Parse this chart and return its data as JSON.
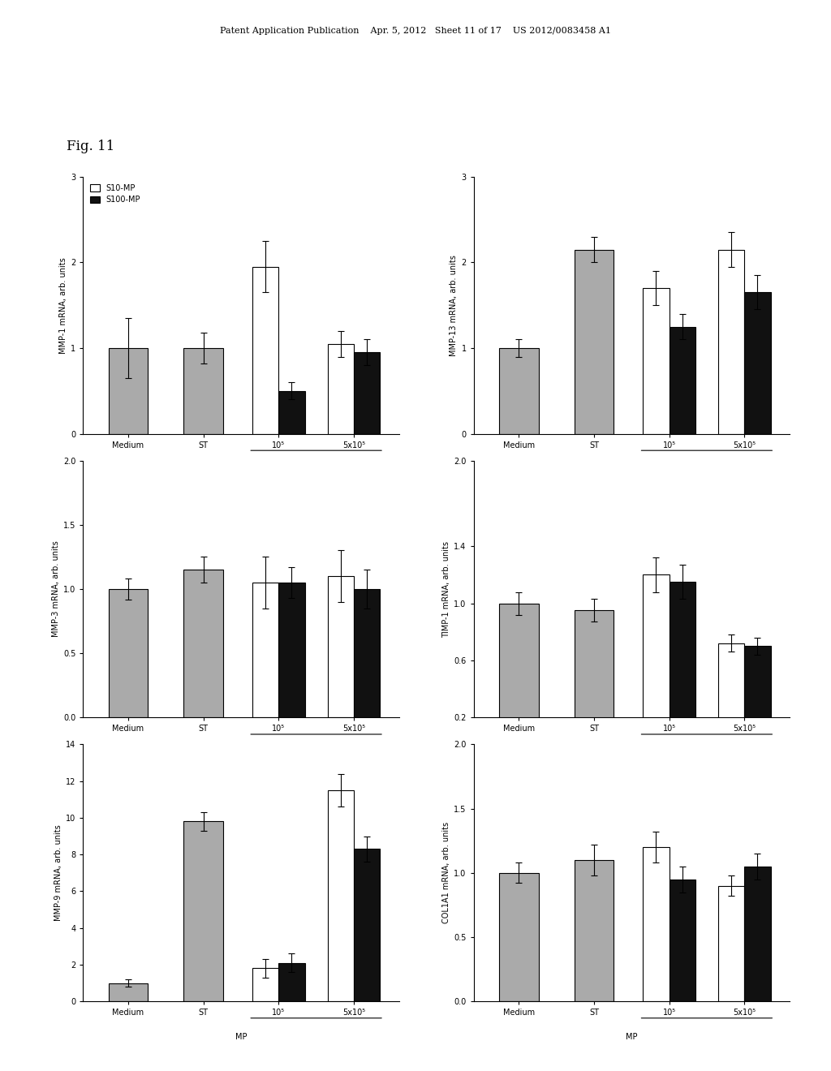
{
  "fig_label": "Fig. 11",
  "header_text": "Patent Application Publication    Apr. 5, 2012   Sheet 11 of 17    US 2012/0083458 A1",
  "legend_labels": [
    "S10-MP",
    "S100-MP"
  ],
  "x_tick_labels": [
    "Medium",
    "ST",
    "10⁵",
    "5x10⁵"
  ],
  "x_label": "MP",
  "subplots": [
    {
      "title": "",
      "ylabel": "MMP-1 mRNA, arb. units",
      "ylim": [
        0,
        3
      ],
      "yticks": [
        0,
        1,
        2,
        3
      ],
      "data": {
        "medium": {
          "s10": 1.0,
          "s100": null,
          "s10_err": 0.35,
          "s100_err": null
        },
        "st": {
          "s10": 1.0,
          "s100": null,
          "s10_err": 0.18,
          "s100_err": null
        },
        "1e5": {
          "s10": 1.95,
          "s100": 0.5,
          "s10_err": 0.3,
          "s100_err": 0.1
        },
        "5e5": {
          "s10": 1.05,
          "s100": 0.95,
          "s10_err": 0.15,
          "s100_err": 0.15
        }
      },
      "show_legend": true
    },
    {
      "title": "",
      "ylabel": "MMP-13 mRNA, arb. units",
      "ylim": [
        0,
        3
      ],
      "yticks": [
        0,
        1,
        2,
        3
      ],
      "data": {
        "medium": {
          "s10": 1.0,
          "s100": null,
          "s10_err": 0.1,
          "s100_err": null
        },
        "st": {
          "s10": 2.15,
          "s100": null,
          "s10_err": 0.15,
          "s100_err": null
        },
        "1e5": {
          "s10": 1.7,
          "s100": 1.25,
          "s10_err": 0.2,
          "s100_err": 0.15
        },
        "5e5": {
          "s10": 2.15,
          "s100": 1.65,
          "s10_err": 0.2,
          "s100_err": 0.2
        }
      },
      "show_legend": false
    },
    {
      "title": "",
      "ylabel": "MMP-3 mRNA, arb. units",
      "ylim": [
        0.0,
        2.0
      ],
      "yticks": [
        0.0,
        0.5,
        1.0,
        1.5,
        2.0
      ],
      "data": {
        "medium": {
          "s10": 1.0,
          "s100": null,
          "s10_err": 0.08,
          "s100_err": null
        },
        "st": {
          "s10": 1.15,
          "s100": null,
          "s10_err": 0.1,
          "s100_err": null
        },
        "1e5": {
          "s10": 1.05,
          "s100": 1.05,
          "s10_err": 0.2,
          "s100_err": 0.12
        },
        "5e5": {
          "s10": 1.1,
          "s100": 1.0,
          "s10_err": 0.2,
          "s100_err": 0.15
        }
      },
      "show_legend": false
    },
    {
      "title": "",
      "ylabel": "TIMP-1 mRNA, arb. units",
      "ylim": [
        0.2,
        2.0
      ],
      "yticks": [
        0.2,
        0.6,
        1.0,
        1.4,
        2.0
      ],
      "data": {
        "medium": {
          "s10": 1.0,
          "s100": null,
          "s10_err": 0.08,
          "s100_err": null
        },
        "st": {
          "s10": 0.95,
          "s100": null,
          "s10_err": 0.08,
          "s100_err": null
        },
        "1e5": {
          "s10": 1.2,
          "s100": 1.15,
          "s10_err": 0.12,
          "s100_err": 0.12
        },
        "5e5": {
          "s10": 0.72,
          "s100": 0.7,
          "s10_err": 0.06,
          "s100_err": 0.06
        }
      },
      "show_legend": false
    },
    {
      "title": "",
      "ylabel": "MMP-9 mRNA, arb. units",
      "ylim": [
        0,
        14
      ],
      "yticks": [
        0,
        2,
        4,
        6,
        8,
        10,
        12,
        14
      ],
      "data": {
        "medium": {
          "s10": 1.0,
          "s100": null,
          "s10_err": 0.2,
          "s100_err": null
        },
        "st": {
          "s10": 9.8,
          "s100": null,
          "s10_err": 0.5,
          "s100_err": null
        },
        "1e5": {
          "s10": 1.8,
          "s100": 2.1,
          "s10_err": 0.5,
          "s100_err": 0.5
        },
        "5e5": {
          "s10": 11.5,
          "s100": 8.3,
          "s10_err": 0.9,
          "s100_err": 0.7
        }
      },
      "show_legend": false
    },
    {
      "title": "",
      "ylabel": "COL1A1 mRNA, arb. units",
      "ylim": [
        0.0,
        2.0
      ],
      "yticks": [
        0.0,
        0.5,
        1.0,
        1.5,
        2.0
      ],
      "data": {
        "medium": {
          "s10": 1.0,
          "s100": null,
          "s10_err": 0.08,
          "s100_err": null
        },
        "st": {
          "s10": 1.1,
          "s100": null,
          "s10_err": 0.12,
          "s100_err": null
        },
        "1e5": {
          "s10": 1.2,
          "s100": 0.95,
          "s10_err": 0.12,
          "s100_err": 0.1
        },
        "5e5": {
          "s10": 0.9,
          "s100": 1.05,
          "s10_err": 0.08,
          "s100_err": 0.1
        }
      },
      "show_legend": false
    }
  ],
  "bar_width": 0.35,
  "colors": {
    "medium_st": "#aaaaaa",
    "s10": "#ffffff",
    "s100": "#111111"
  },
  "edgecolor": "#000000",
  "background": "#ffffff",
  "fontsize_title": 13,
  "fontsize_label": 7,
  "fontsize_tick": 7,
  "fontsize_legend": 7,
  "fontsize_figlabel": 12
}
